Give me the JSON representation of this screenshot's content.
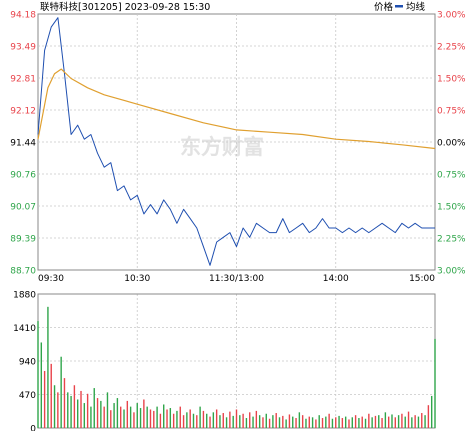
{
  "header": {
    "title": "联特科技[301205] 2023-09-28 15:30",
    "legend_price": "价格",
    "legend_avg": "均线"
  },
  "colors": {
    "price_line": "#1f4fb0",
    "avg_line": "#e0a030",
    "up": "#e8434a",
    "down": "#2fa54a",
    "grid": "#c8c8c8",
    "frame": "#888888",
    "axis_text": "#000000"
  },
  "watermark": "东方财富",
  "chart_data": [
    {
      "type": "line",
      "title": "联特科技[301205] 2023-09-28 15:30",
      "y_left_ticks": [
        "94.18",
        "93.49",
        "92.81",
        "92.12",
        "91.44",
        "90.76",
        "90.07",
        "89.39",
        "88.70"
      ],
      "y_right_ticks": [
        "3.00%",
        "2.25%",
        "1.50%",
        "0.75%",
        "0.00%",
        "0.75%",
        "1.50%",
        "2.25%",
        "3.00%"
      ],
      "x_ticks": [
        "09:30",
        "10:30",
        "11:30/13:00",
        "14:00",
        "15:00"
      ],
      "ylim": [
        88.7,
        94.18
      ],
      "grid": true,
      "series": [
        {
          "name": "价格",
          "x": [
            0,
            4,
            8,
            12,
            16,
            20,
            24,
            28,
            32,
            36,
            40,
            44,
            48,
            52,
            56,
            60,
            64,
            68,
            72,
            76,
            80,
            84,
            88,
            92,
            96,
            100,
            104,
            108,
            112,
            116,
            120,
            124,
            128,
            132,
            136,
            140,
            144,
            148,
            152,
            156,
            160,
            164,
            168,
            172,
            176,
            180,
            184,
            188,
            192,
            196,
            200,
            204,
            208,
            212,
            216,
            220,
            224,
            228,
            232,
            236,
            240
          ],
          "values": [
            91.6,
            93.4,
            93.9,
            94.1,
            92.9,
            91.6,
            91.8,
            91.5,
            91.6,
            91.2,
            90.9,
            91.0,
            90.4,
            90.5,
            90.2,
            90.3,
            89.9,
            90.1,
            89.9,
            90.2,
            90.0,
            89.7,
            90.0,
            89.8,
            89.6,
            89.2,
            88.8,
            89.3,
            89.4,
            89.5,
            89.2,
            89.6,
            89.4,
            89.7,
            89.6,
            89.5,
            89.5,
            89.8,
            89.5,
            89.6,
            89.7,
            89.5,
            89.6,
            89.8,
            89.6,
            89.6,
            89.5,
            89.6,
            89.5,
            89.6,
            89.5,
            89.6,
            89.7,
            89.6,
            89.5,
            89.7,
            89.6,
            89.7,
            89.6,
            89.6,
            89.6
          ]
        },
        {
          "name": "均线",
          "x": [
            0,
            6,
            10,
            14,
            20,
            30,
            40,
            60,
            80,
            100,
            120,
            140,
            160,
            180,
            200,
            220,
            240
          ],
          "values": [
            91.5,
            92.6,
            92.9,
            93.0,
            92.8,
            92.6,
            92.45,
            92.25,
            92.05,
            91.85,
            91.7,
            91.65,
            91.6,
            91.5,
            91.45,
            91.38,
            91.3
          ]
        }
      ]
    },
    {
      "type": "bar",
      "title": "",
      "y_ticks": [
        "1880",
        "1410",
        "940",
        "470",
        "0"
      ],
      "ylim": [
        0,
        1880
      ],
      "x": [
        0,
        2,
        4,
        6,
        8,
        10,
        12,
        14,
        16,
        18,
        20,
        22,
        24,
        26,
        28,
        30,
        32,
        34,
        36,
        38,
        40,
        42,
        44,
        46,
        48,
        50,
        52,
        54,
        56,
        58,
        60,
        62,
        64,
        66,
        68,
        70,
        72,
        74,
        76,
        78,
        80,
        82,
        84,
        86,
        88,
        90,
        92,
        94,
        96,
        98,
        100,
        102,
        104,
        106,
        108,
        110,
        112,
        114,
        116,
        118,
        120,
        122,
        124,
        126,
        128,
        130,
        132,
        134,
        136,
        138,
        140,
        142,
        144,
        146,
        148,
        150,
        152,
        154,
        156,
        158,
        160,
        162,
        164,
        166,
        168,
        170,
        172,
        174,
        176,
        178,
        180,
        182,
        184,
        186,
        188,
        190,
        192,
        194,
        196,
        198,
        200,
        202,
        204,
        206,
        208,
        210,
        212,
        214,
        216,
        218,
        220,
        222,
        224,
        226,
        228,
        230,
        232,
        234,
        236,
        238,
        240
      ],
      "values": [
        1500,
        1200,
        800,
        1700,
        900,
        600,
        500,
        1000,
        700,
        500,
        450,
        600,
        400,
        520,
        350,
        480,
        300,
        560,
        420,
        380,
        300,
        500,
        250,
        350,
        420,
        300,
        260,
        380,
        300,
        220,
        350,
        280,
        400,
        300,
        260,
        240,
        300,
        200,
        330,
        260,
        280,
        200,
        240,
        300,
        180,
        220,
        260,
        200,
        180,
        300,
        240,
        200,
        160,
        220,
        260,
        180,
        210,
        150,
        230,
        170,
        260,
        180,
        200,
        140,
        220,
        160,
        240,
        180,
        150,
        200,
        130,
        180,
        210,
        150,
        170,
        120,
        190,
        160,
        140,
        220,
        180,
        130,
        160,
        150,
        120,
        180,
        140,
        160,
        200,
        130,
        150,
        170,
        140,
        160,
        120,
        150,
        180,
        140,
        160,
        130,
        200,
        150,
        170,
        180,
        140,
        220,
        160,
        190,
        150,
        180,
        200,
        160,
        230,
        150,
        180,
        160,
        210,
        180,
        320,
        450,
        1250
      ],
      "dirs": [
        "d",
        "d",
        "u",
        "d",
        "u",
        "d",
        "u",
        "d",
        "u",
        "d",
        "d",
        "u",
        "d",
        "u",
        "d",
        "u",
        "d",
        "d",
        "u",
        "d",
        "u",
        "d",
        "u",
        "d",
        "d",
        "u",
        "d",
        "u",
        "d",
        "u",
        "d",
        "d",
        "u",
        "d",
        "u",
        "u",
        "d",
        "u",
        "d",
        "u",
        "d",
        "u",
        "d",
        "u",
        "u",
        "d",
        "u",
        "d",
        "u",
        "d",
        "u",
        "d",
        "u",
        "d",
        "u",
        "d",
        "u",
        "d",
        "u",
        "d",
        "u",
        "d",
        "u",
        "d",
        "u",
        "d",
        "u",
        "d",
        "u",
        "d",
        "u",
        "d",
        "u",
        "d",
        "u",
        "d",
        "u",
        "d",
        "u",
        "d",
        "u",
        "d",
        "u",
        "d",
        "u",
        "d",
        "u",
        "d",
        "u",
        "d",
        "u",
        "d",
        "u",
        "d",
        "u",
        "d",
        "u",
        "d",
        "u",
        "d",
        "u",
        "d",
        "u",
        "d",
        "u",
        "d",
        "u",
        "d",
        "u",
        "d",
        "u",
        "d",
        "u",
        "d",
        "u",
        "d",
        "u",
        "d",
        "u",
        "d",
        "d"
      ]
    }
  ]
}
